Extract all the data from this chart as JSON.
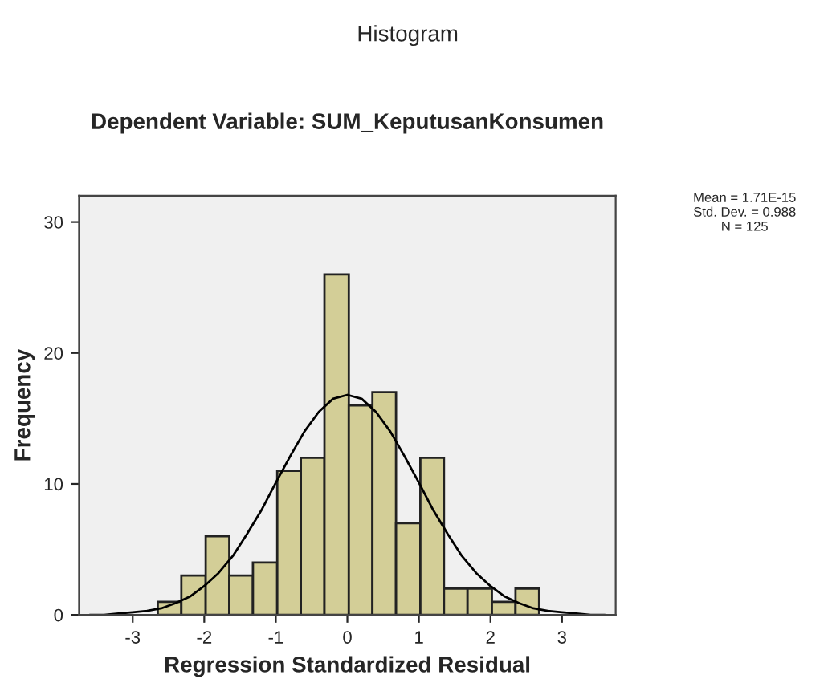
{
  "chart_data": {
    "type": "histogram",
    "title": "Histogram",
    "subtitle": "Dependent Variable: SUM_KeputusanKonsumen",
    "xlabel": "Regression Standardized Residual",
    "ylabel": "Frequency",
    "bins": [
      -2.65,
      -2.32,
      -1.98,
      -1.65,
      -1.32,
      -0.98,
      -0.65,
      -0.32,
      0.02,
      0.35,
      0.68,
      1.02,
      1.35,
      1.68,
      2.02,
      2.35,
      2.68
    ],
    "values": [
      1,
      3,
      6,
      3,
      4,
      11,
      12,
      26,
      16,
      17,
      7,
      12,
      2,
      2,
      1,
      2
    ],
    "color": "#d3ce97",
    "series": [
      {
        "type": "line",
        "color": "#000000",
        "x": [
          -3.6,
          -3.4,
          -3.2,
          -3.0,
          -2.8,
          -2.6,
          -2.4,
          -2.2,
          -2.0,
          -1.8,
          -1.6,
          -1.4,
          -1.2,
          -1.0,
          -0.8,
          -0.6,
          -0.4,
          -0.2,
          0.0,
          0.2,
          0.4,
          0.6,
          0.8,
          1.0,
          1.2,
          1.4,
          1.6,
          1.8,
          2.0,
          2.2,
          2.4,
          2.6,
          2.8,
          3.0,
          3.2,
          3.4,
          3.6
        ],
        "values": [
          0.0,
          0.0,
          0.1,
          0.2,
          0.3,
          0.5,
          0.9,
          1.4,
          2.2,
          3.2,
          4.5,
          6.2,
          8.0,
          10.1,
          12.1,
          14.0,
          15.5,
          16.5,
          16.8,
          16.5,
          15.5,
          14.0,
          12.1,
          10.1,
          8.0,
          6.2,
          4.5,
          3.2,
          2.2,
          1.4,
          0.9,
          0.5,
          0.3,
          0.2,
          0.1,
          0.0,
          0.0
        ]
      }
    ],
    "annotations": [
      "Mean = 1.71E-15\nStd. Dev. = 0.988\nN = 125"
    ],
    "xlim": [
      -3.75,
      3.75
    ],
    "ylim": [
      0,
      32
    ],
    "xticks": [
      -3,
      -2,
      -1,
      0,
      1,
      2,
      3
    ],
    "yticks": [
      0,
      10,
      20,
      30
    ],
    "grid": false,
    "legend": false
  }
}
